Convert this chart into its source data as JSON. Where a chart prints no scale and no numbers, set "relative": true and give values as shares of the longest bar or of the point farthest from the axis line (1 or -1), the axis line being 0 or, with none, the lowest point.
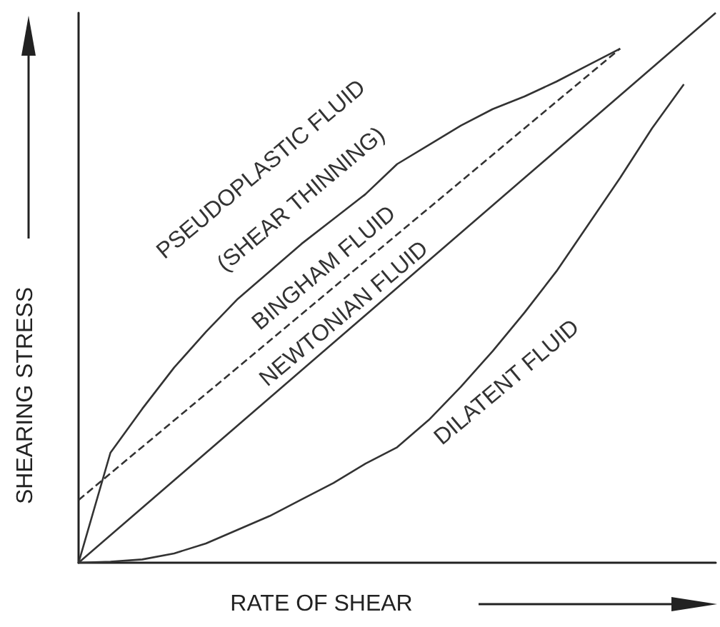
{
  "chart_data": {
    "type": "line",
    "relative": true,
    "xlabel": "RATE OF SHEAR",
    "ylabel": "SHEARING STRESS",
    "grid": false,
    "marker": "none",
    "categories": [
      null,
      null,
      null,
      null,
      null,
      null,
      null,
      null,
      null,
      null,
      null,
      null,
      null,
      null,
      null,
      null,
      null,
      null,
      null,
      null,
      null
    ],
    "series": [
      {
        "color": "#333333",
        "line_style": "solid",
        "values": [
          0,
          0.2,
          0.28,
          0.355,
          0.42,
          0.48,
          0.53,
          0.58,
          0.625,
          0.67,
          0.725,
          0.76,
          0.795,
          0.825,
          0.848,
          0.875,
          0.905,
          0.935,
          null,
          null,
          null
        ]
      },
      {
        "color": "#333333",
        "line_style": "dashed",
        "values": [
          0.114,
          null,
          null,
          null,
          null,
          null,
          null,
          null,
          null,
          null,
          null,
          null,
          null,
          null,
          null,
          null,
          null,
          0.935,
          null,
          null,
          null
        ]
      },
      {
        "color": "#333333",
        "line_style": "solid",
        "values": [
          0,
          null,
          null,
          null,
          null,
          null,
          null,
          null,
          null,
          null,
          null,
          null,
          null,
          null,
          null,
          null,
          null,
          null,
          null,
          null,
          1
        ]
      },
      {
        "color": "#333333",
        "line_style": "solid",
        "values": [
          0,
          0.002,
          0.006,
          0.017,
          0.035,
          0.06,
          0.085,
          0.115,
          0.145,
          0.18,
          0.21,
          0.26,
          0.32,
          0.385,
          0.455,
          0.53,
          0.615,
          0.7,
          0.79,
          0.87,
          null
        ]
      }
    ],
    "annotations": [
      "PSEUDOPLASTIC FLUID",
      "(SHEAR THINNING)",
      "BINGHAM FLUID",
      "NEWTONIAN FLUID",
      "DILATENT FLUID"
    ]
  }
}
